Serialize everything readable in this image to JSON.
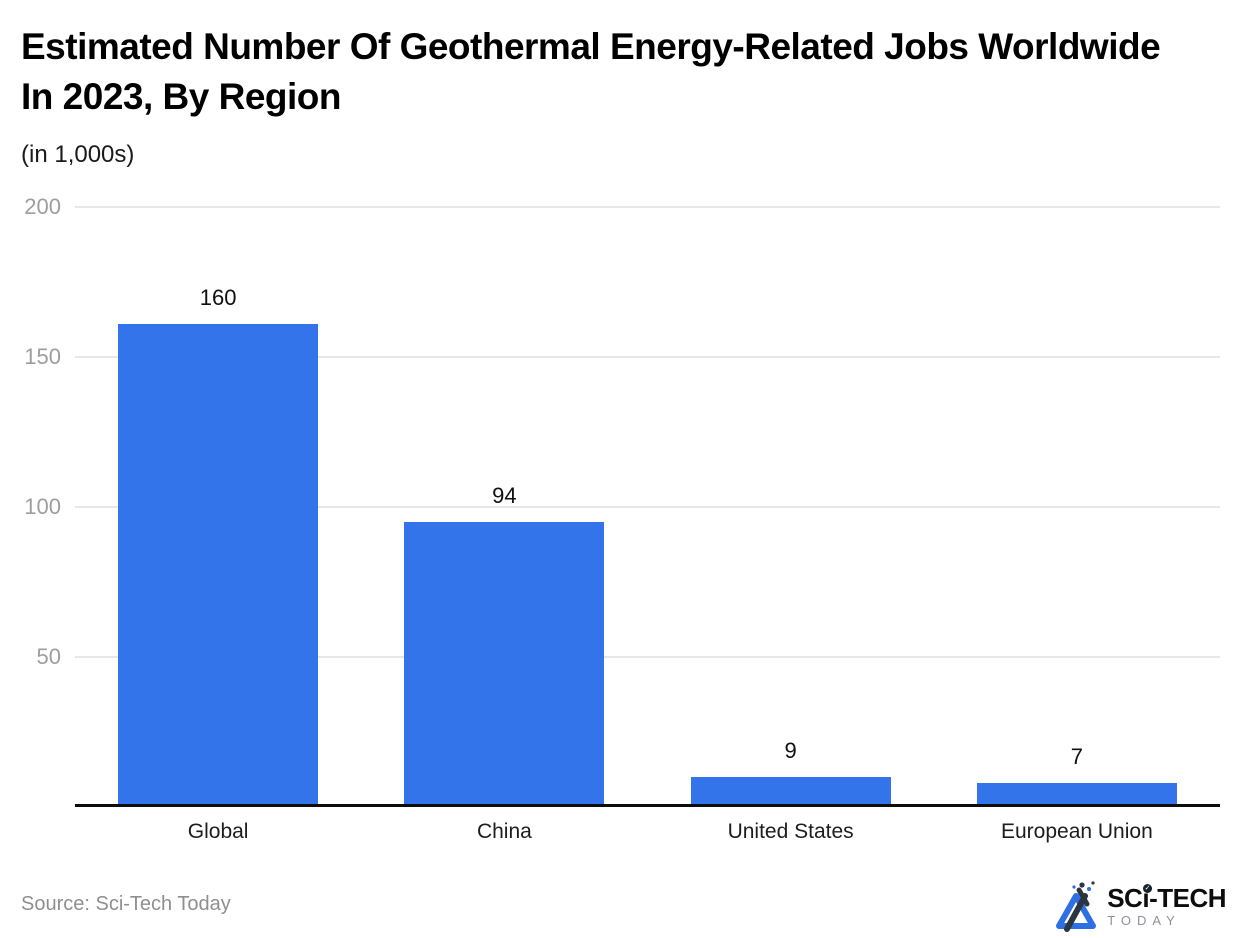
{
  "header": {
    "title": "Estimated Number Of Geothermal Energy-Related Jobs Worldwide In 2023, By Region",
    "subtitle": "(in 1,000s)"
  },
  "footer": {
    "source": "Source: Sci-Tech Today",
    "logo": {
      "mark": "sci-tech-today-triangle-mark",
      "main_prefix": "SC",
      "main_i": "ı",
      "main_i_dot": "✓",
      "main_suffix": "-TECH",
      "secondary": "TODAY"
    }
  },
  "colors": {
    "bar": "#3374ea",
    "grid": "#e7e7e7",
    "axis": "#0d0d0d",
    "tick_label": "#9e9e9e",
    "value_label": "#101010",
    "category_label": "#1d1d1d",
    "logo_blue": "#2f6fe4",
    "logo_dark": "#2b3640"
  },
  "chart_data": {
    "type": "bar",
    "title": "Estimated Number Of Geothermal Energy-Related Jobs Worldwide In 2023, By Region",
    "subtitle": "(in 1,000s)",
    "categories": [
      "Global",
      "China",
      "United States",
      "European Union"
    ],
    "values": [
      160,
      94,
      9,
      7
    ],
    "value_labels": [
      "160",
      "94",
      "9",
      "7"
    ],
    "xlabel": "",
    "ylabel": "(in 1,000s)",
    "ylim": [
      0,
      200
    ],
    "yticks": [
      50,
      100,
      150,
      200
    ],
    "grid": true,
    "legend": "none",
    "bar_color": "#3374ea",
    "source": "Sci-Tech Today"
  }
}
